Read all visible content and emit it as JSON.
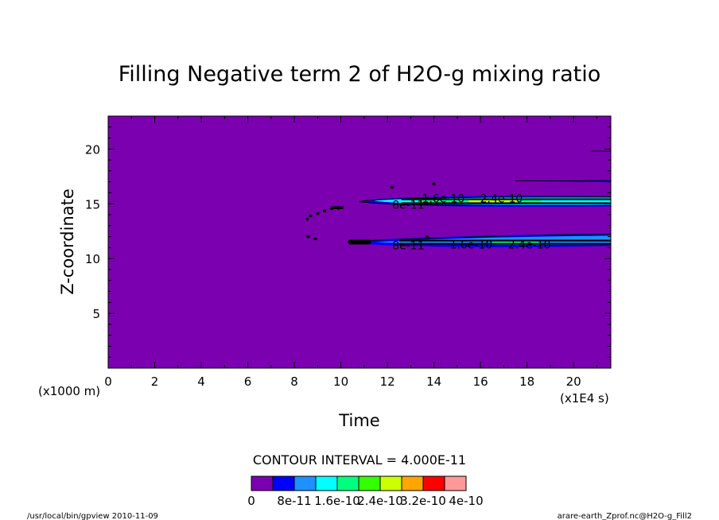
{
  "chart_data": {
    "type": "heatmap",
    "title": "Filling Negative term 2 of H2O-g mixing ratio",
    "xlabel": "Time",
    "ylabel": "Z-coordinate",
    "x_unit": "(x1E4 s)",
    "y_unit": "(x1000 m)",
    "xlim": [
      0,
      21.6
    ],
    "ylim": [
      0,
      23
    ],
    "x_ticks": [
      0,
      2,
      4,
      6,
      8,
      10,
      12,
      14,
      16,
      18,
      20
    ],
    "y_ticks": [
      5,
      10,
      15,
      20
    ],
    "contour_interval": "CONTOUR INTERVAL = 4.000E-11",
    "colorbar": {
      "colors": [
        "#7b00b0",
        "#0000ff",
        "#1e90ff",
        "#00ffff",
        "#00ff7f",
        "#33ff00",
        "#ccff00",
        "#ffa500",
        "#ff0000",
        "#ff9999"
      ],
      "labels": [
        "0",
        "8e-11",
        "1.6e-10",
        "2.4e-10",
        "3.2e-10",
        "4e-10"
      ]
    },
    "background_level": 0,
    "features": [
      {
        "band": "upper",
        "z": 15.2,
        "t_start": 10.8,
        "t_end": 21.6
      },
      {
        "band": "lower",
        "z": 11.5,
        "t_start": 10.3,
        "t_end": 21.6
      },
      {
        "band": "top",
        "z": 17.1,
        "t_start": 17.5,
        "t_end": 21.6
      }
    ],
    "contour_labels": [
      {
        "text": "8e-11",
        "t": 12.9,
        "z": 14.9
      },
      {
        "text": "1.6e-10",
        "t": 14.4,
        "z": 15.5
      },
      {
        "text": "2.4e-10",
        "t": 16.9,
        "z": 15.5
      },
      {
        "text": "8e-11",
        "t": 12.9,
        "z": 11.2
      },
      {
        "text": "1.6e-10",
        "t": 15.6,
        "z": 11.3
      },
      {
        "text": "2.4e-10",
        "t": 18.1,
        "z": 11.3
      }
    ]
  },
  "footer": {
    "left": "/usr/local/bin/gpview  2010-11-09",
    "right": "arare-earth_Zprof.nc@H2O-g_Fill2"
  }
}
